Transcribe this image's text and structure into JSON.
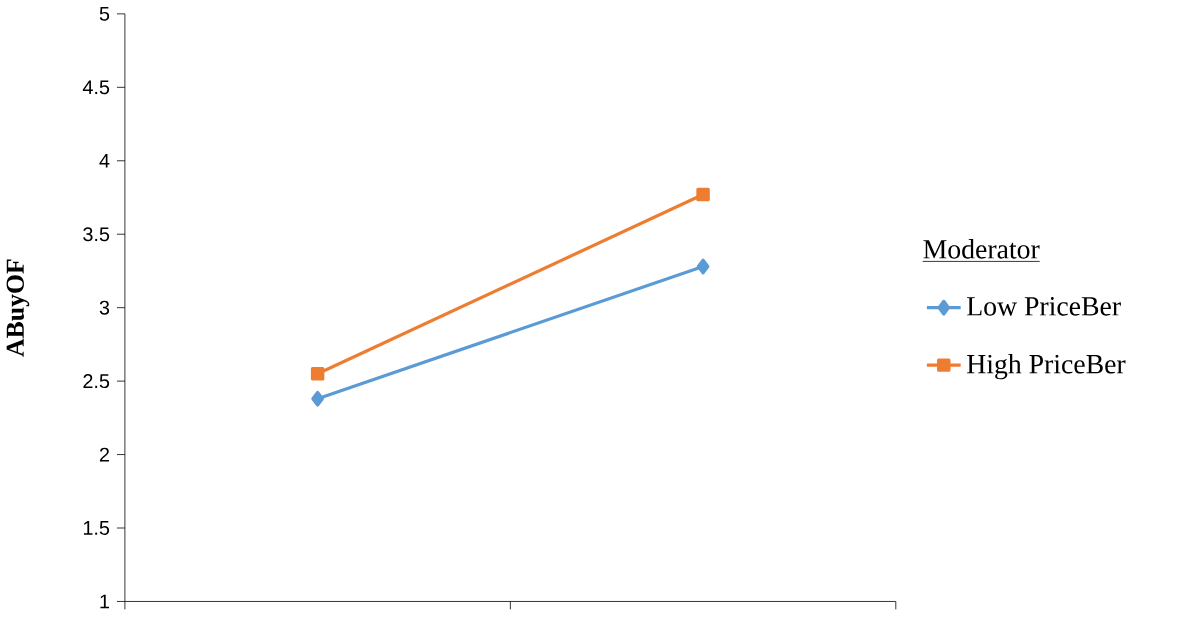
{
  "chart_data": {
    "type": "line",
    "ylabel": "ABuyOF",
    "legend_title": "Moderator",
    "legend": "right",
    "categories": [
      null,
      null
    ],
    "series": [
      {
        "name": "Low PriceBer",
        "color": "#5b9bd5",
        "marker": "diamond",
        "values": [
          2.38,
          3.28
        ]
      },
      {
        "name": "High PriceBer",
        "color": "#ed7d31",
        "marker": "square",
        "values": [
          2.55,
          3.77
        ]
      }
    ],
    "ylim": [
      1,
      5
    ],
    "yticks": [
      1,
      1.5,
      2,
      2.5,
      3,
      3.5,
      4,
      4.5,
      5
    ],
    "grid": false
  }
}
